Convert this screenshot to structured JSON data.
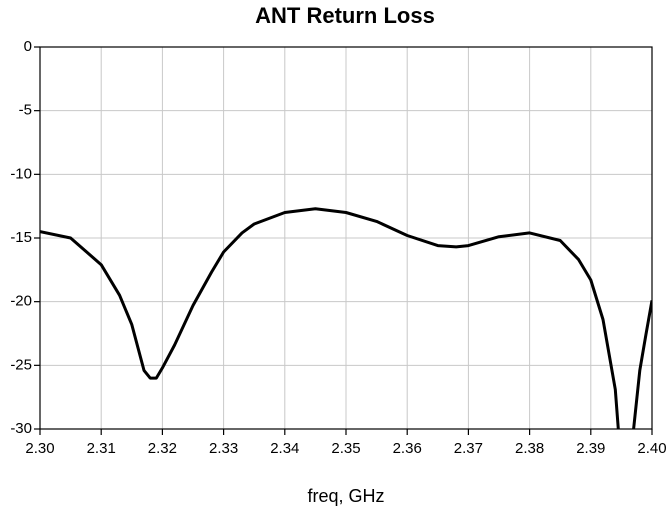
{
  "chart_data": {
    "type": "line",
    "title": "ANT Return Loss",
    "x_label": "freq, GHz",
    "x": [
      2.3,
      2.305,
      2.31,
      2.313,
      2.315,
      2.317,
      2.318,
      2.319,
      2.32,
      2.322,
      2.325,
      2.328,
      2.33,
      2.333,
      2.335,
      2.34,
      2.345,
      2.35,
      2.355,
      2.36,
      2.365,
      2.368,
      2.37,
      2.375,
      2.38,
      2.385,
      2.388,
      2.39,
      2.392,
      2.394,
      2.3945,
      2.3955,
      2.397,
      2.398,
      2.399,
      2.4
    ],
    "series": [
      {
        "name": "ANT Return Loss",
        "color": "#000000",
        "values": [
          -14.5,
          -15.0,
          -17.1,
          -19.5,
          -21.8,
          -25.4,
          -26.0,
          -26.0,
          -25.2,
          -23.4,
          -20.3,
          -17.7,
          -16.1,
          -14.6,
          -13.9,
          -13.0,
          -12.7,
          -13.0,
          -13.7,
          -14.8,
          -15.6,
          -15.7,
          -15.6,
          -14.9,
          -14.6,
          -15.2,
          -16.7,
          -18.3,
          -21.4,
          -26.9,
          -30,
          null,
          -30,
          -25.4,
          -22.6,
          -19.9
        ]
      }
    ],
    "xlim": [
      2.3,
      2.4
    ],
    "ylim": [
      -30,
      0
    ],
    "xticks": [
      {
        "value": 2.3,
        "label": "2.30"
      },
      2.31,
      2.32,
      2.33,
      2.34,
      2.35,
      2.36,
      2.37,
      2.38,
      2.39,
      {
        "value": 2.4,
        "label": "2.40"
      }
    ],
    "yticks": [
      0,
      -5,
      -10,
      -15,
      -20,
      -25,
      -30
    ],
    "grid": true
  }
}
